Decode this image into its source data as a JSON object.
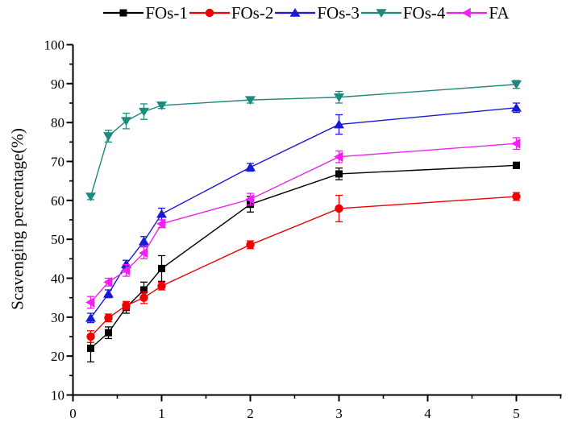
{
  "chart_data": {
    "type": "line",
    "title": "",
    "xlabel": "",
    "ylabel": "Scavenging percentage(%)",
    "grid": false,
    "legend_position": "top",
    "xlim": [
      0,
      5.5
    ],
    "ylim": [
      10,
      100
    ],
    "x_ticks_major": [
      0,
      1,
      2,
      3,
      4,
      5
    ],
    "x_ticks_minor": [
      0.5,
      1.5,
      2.5,
      3.5,
      4.5,
      5.5
    ],
    "y_ticks_major": [
      10,
      20,
      30,
      40,
      50,
      60,
      70,
      80,
      90,
      100
    ],
    "y_minor_step": 5,
    "x": [
      0.2,
      0.4,
      0.6,
      0.8,
      1,
      2,
      3,
      5
    ],
    "series": [
      {
        "name": "FOs-1",
        "color": "#000000",
        "marker": "square",
        "values": [
          22,
          26,
          32.5,
          37,
          42.5,
          59,
          66.8,
          69
        ],
        "errors": [
          3.5,
          1.5,
          1.5,
          2,
          3.3,
          2,
          1.5,
          0.8
        ]
      },
      {
        "name": "FOs-2",
        "color": "#ee0000",
        "marker": "circle",
        "values": [
          25,
          29.8,
          33,
          35,
          38,
          48.6,
          57.9,
          61
        ],
        "errors": [
          1.5,
          1,
          1,
          1.5,
          1,
          1,
          3.4,
          1
        ]
      },
      {
        "name": "FOs-3",
        "color": "#1a1ad6",
        "marker": "triangle-up",
        "values": [
          29.8,
          36,
          43.6,
          49.5,
          56.5,
          68.5,
          79.5,
          83.8
        ],
        "errors": [
          1.2,
          1,
          1,
          1.2,
          1.5,
          1,
          2.5,
          1.2
        ]
      },
      {
        "name": "FOs-4",
        "color": "#1f897e",
        "marker": "triangle-down",
        "values": [
          61,
          76.5,
          80.4,
          82.8,
          84.4,
          85.8,
          86.5,
          89.8
        ],
        "errors": [
          0.8,
          1.5,
          2,
          2,
          0.8,
          0.8,
          1.5,
          1
        ]
      },
      {
        "name": "FA",
        "color": "#ee22ee",
        "marker": "triangle-left",
        "values": [
          33.8,
          39,
          42,
          46.5,
          54,
          60.3,
          71.2,
          74.6
        ],
        "errors": [
          1.5,
          1,
          1.5,
          1.5,
          1,
          1.5,
          1.5,
          1.5
        ]
      }
    ]
  },
  "axes": {
    "x_tick_labels": [
      "0",
      "1",
      "2",
      "3",
      "4",
      "5"
    ],
    "y_tick_labels": [
      "10",
      "20",
      "30",
      "40",
      "50",
      "60",
      "70",
      "80",
      "90",
      "100"
    ]
  }
}
